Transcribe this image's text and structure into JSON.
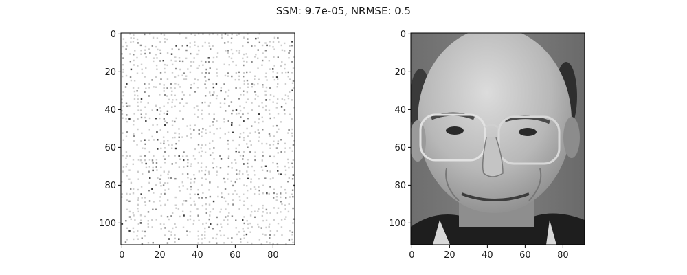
{
  "figure": {
    "suptitle": "SSM: 9.7e-05, NRMSE: 0.5"
  },
  "chart_data": [
    {
      "type": "heatmap",
      "name": "noise-image",
      "colormap": "gray",
      "content": "sparse scattered gray/black pixels on white background",
      "xlim": [
        0,
        92
      ],
      "ylim": [
        112,
        0
      ],
      "x_ticks": [
        0,
        20,
        40,
        60,
        80
      ],
      "y_ticks": [
        0,
        20,
        40,
        60,
        80,
        100
      ],
      "x_tick_labels": [
        "0",
        "20",
        "40",
        "60",
        "80"
      ],
      "y_tick_labels": [
        "0",
        "20",
        "40",
        "60",
        "80",
        "100"
      ]
    },
    {
      "type": "heatmap",
      "name": "face-image",
      "colormap": "gray",
      "content": "grayscale photograph of a balding man wearing glasses, smiling",
      "xlim": [
        0,
        92
      ],
      "ylim": [
        112,
        0
      ],
      "x_ticks": [
        0,
        20,
        40,
        60,
        80
      ],
      "y_ticks": [
        0,
        20,
        40,
        60,
        80,
        100
      ],
      "x_tick_labels": [
        "0",
        "20",
        "40",
        "60",
        "80"
      ],
      "y_tick_labels": [
        "0",
        "20",
        "40",
        "60",
        "80",
        "100"
      ]
    }
  ]
}
